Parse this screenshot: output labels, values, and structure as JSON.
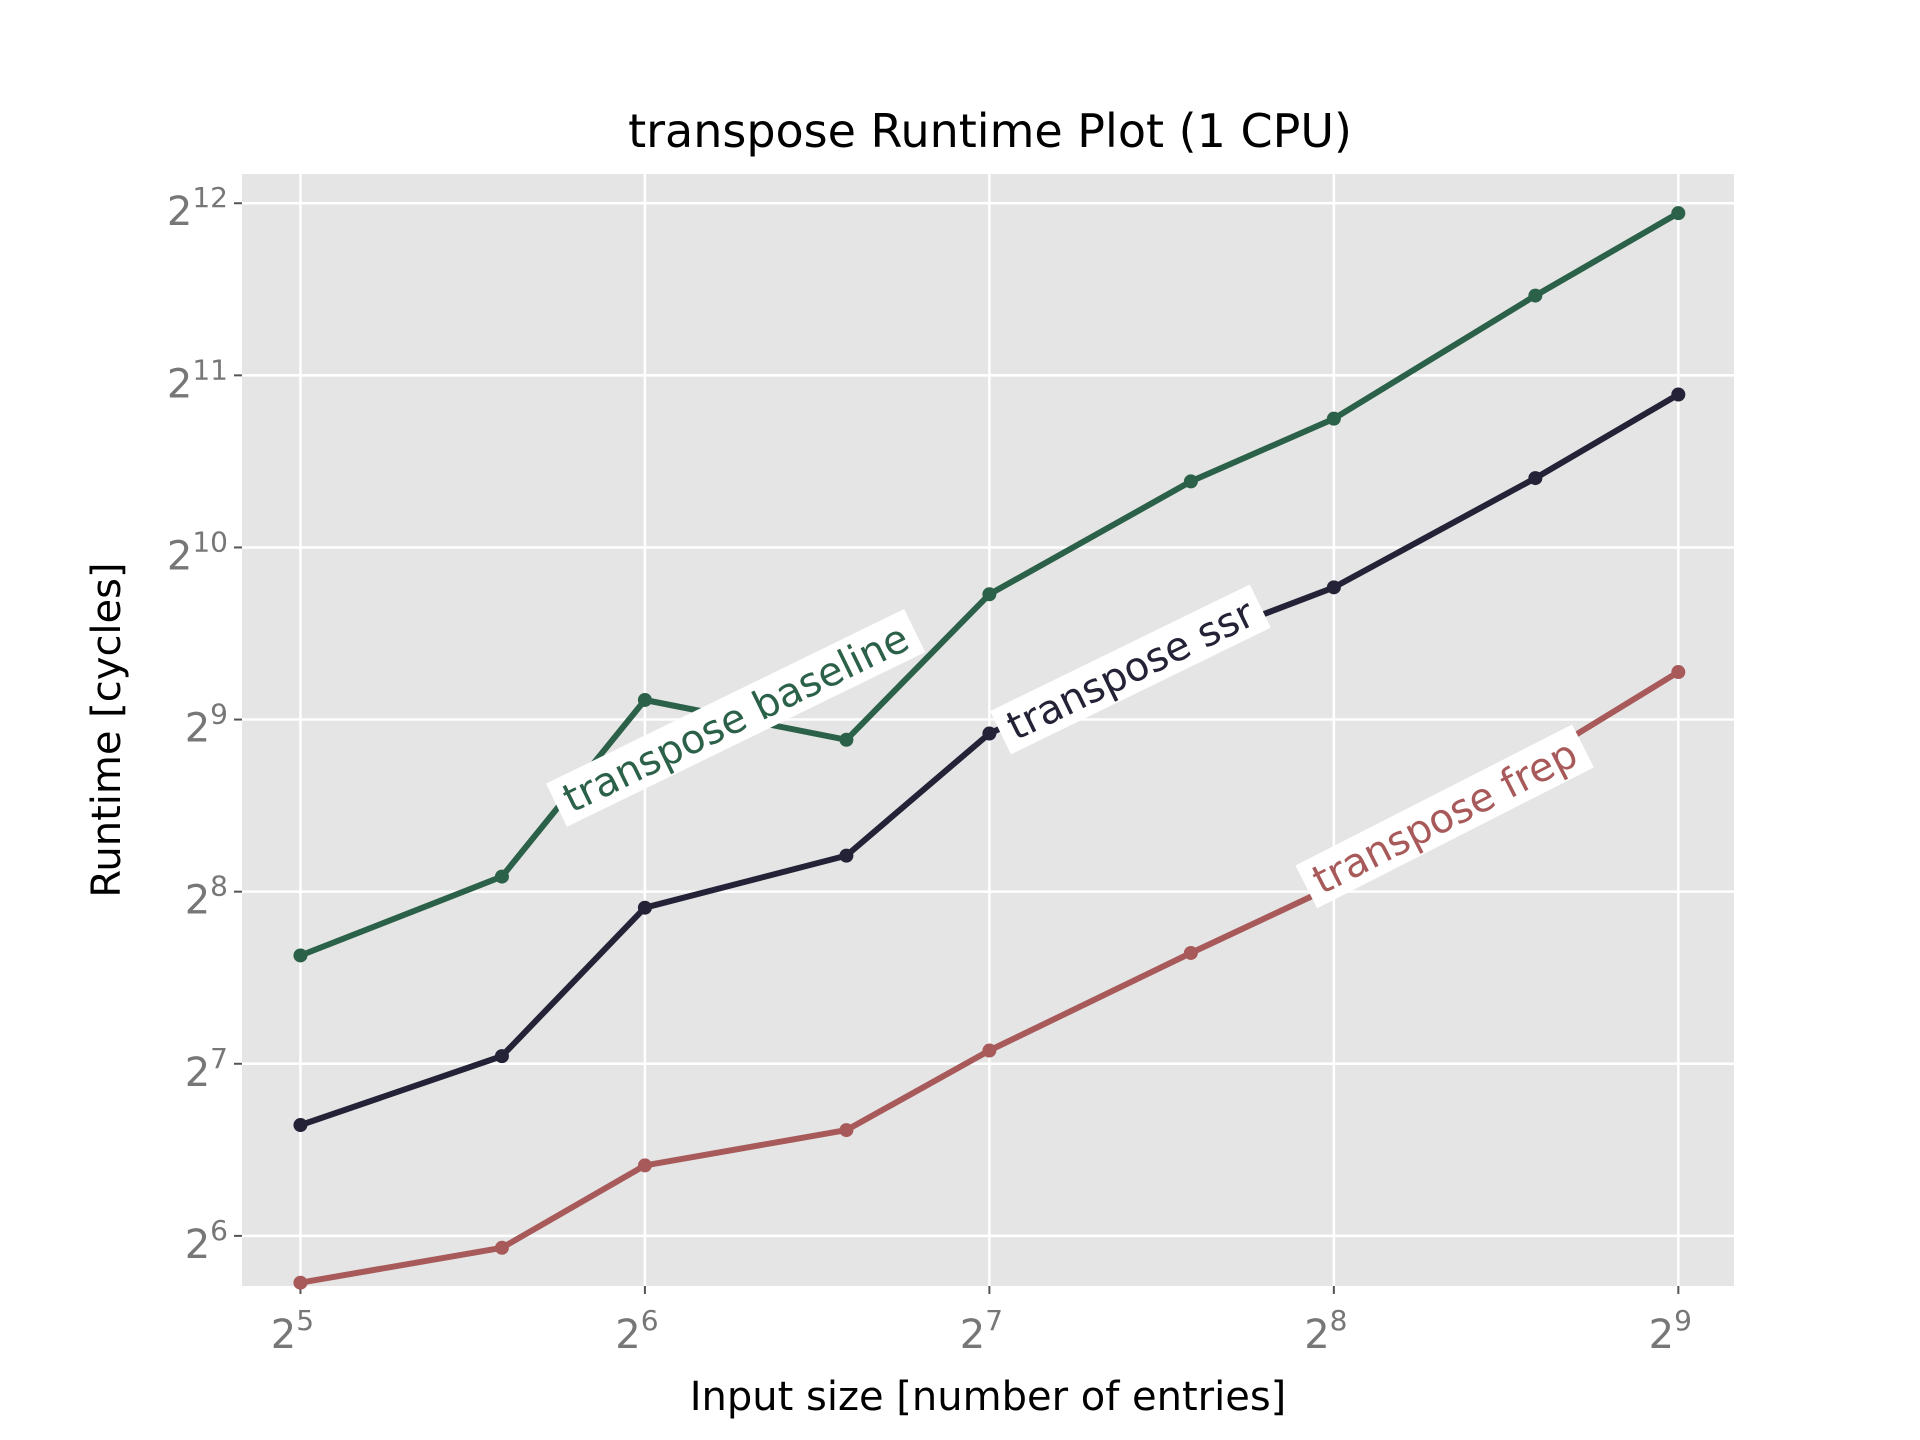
{
  "chart_data": {
    "type": "line",
    "title": "transpose Runtime Plot (1 CPU)",
    "xlabel": "Input size [number of entries]",
    "ylabel": "Runtime [cycles]",
    "x_scale": "log2",
    "y_scale": "log2",
    "xlim": [
      28.45,
      572.7
    ],
    "ylim": [
      52.3,
      4608
    ],
    "x_ticks": [
      {
        "base": "2",
        "exp": "5",
        "value": 32
      },
      {
        "base": "2",
        "exp": "6",
        "value": 64
      },
      {
        "base": "2",
        "exp": "7",
        "value": 128
      },
      {
        "base": "2",
        "exp": "8",
        "value": 256
      },
      {
        "base": "2",
        "exp": "9",
        "value": 512
      }
    ],
    "y_ticks": [
      {
        "base": "2",
        "exp": "6",
        "value": 64
      },
      {
        "base": "2",
        "exp": "7",
        "value": 128
      },
      {
        "base": "2",
        "exp": "8",
        "value": 256
      },
      {
        "base": "2",
        "exp": "9",
        "value": 512
      },
      {
        "base": "2",
        "exp": "10",
        "value": 1024
      },
      {
        "base": "2",
        "exp": "11",
        "value": 2048
      },
      {
        "base": "2",
        "exp": "12",
        "value": 4096
      }
    ],
    "x": [
      32,
      48,
      64,
      96,
      128,
      192,
      256,
      384,
      512
    ],
    "grid": true,
    "background": "#e5e5e5",
    "series": [
      {
        "name": "transpose baseline",
        "color": "#2c6149",
        "values": [
          198,
          272,
          554,
          472,
          848,
          1336,
          1720,
          2824,
          3936
        ],
        "label_anchor_index": 2.45,
        "label_angle_deg": -26
      },
      {
        "name": "transpose ssr",
        "color": "#232237",
        "values": [
          100,
          132,
          240,
          296,
          484,
          700,
          872,
          1354,
          1896
        ],
        "label_anchor_index": 4.7,
        "label_angle_deg": -26
      },
      {
        "name": "transpose frep",
        "color": "#a85a5a",
        "values": [
          53,
          61,
          85,
          98,
          135,
          200,
          262,
          436,
          620
        ],
        "label_anchor_index": 6.55,
        "label_angle_deg": -27
      }
    ]
  }
}
